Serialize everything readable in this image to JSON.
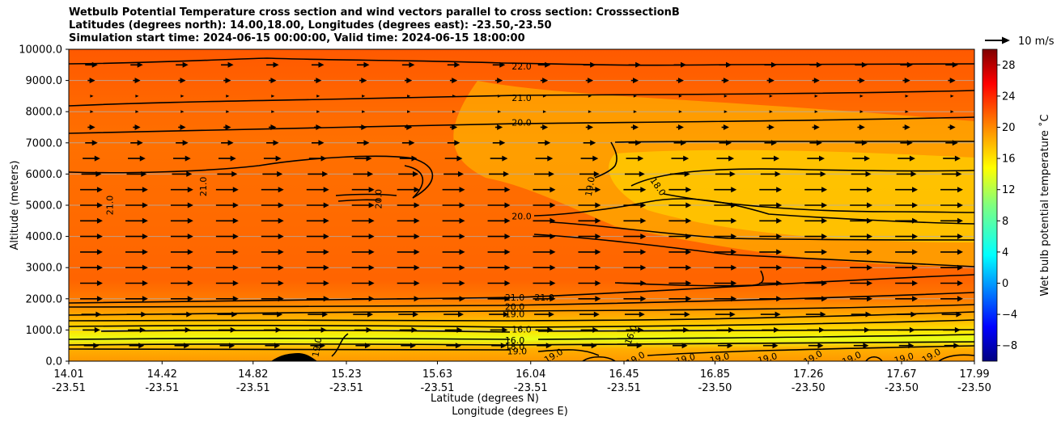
{
  "chart_data": {
    "type": "heatmap",
    "title_lines": [
      "Wetbulb Potential Temperature cross section and wind vectors parallel to cross section: CrosssectionB",
      "Latitudes (degrees north): 14.00,18.00, Longitudes (degrees east): -23.50,-23.50",
      "Simulation start time: 2024-06-15 00:00:00, Valid time: 2024-06-15 18:00:00"
    ],
    "xlabel_lines": [
      "Latitude (degrees N)",
      "Longitude (degrees E)"
    ],
    "ylabel": "Altitude (meters)",
    "x_range": [
      14.01,
      17.99
    ],
    "y_range": [
      0,
      10000
    ],
    "x_ticks": [
      {
        "lat": "14.01",
        "lon": "-23.51"
      },
      {
        "lat": "14.42",
        "lon": "-23.51"
      },
      {
        "lat": "14.82",
        "lon": "-23.51"
      },
      {
        "lat": "15.23",
        "lon": "-23.51"
      },
      {
        "lat": "15.63",
        "lon": "-23.51"
      },
      {
        "lat": "16.04",
        "lon": "-23.51"
      },
      {
        "lat": "16.45",
        "lon": "-23.51"
      },
      {
        "lat": "16.85",
        "lon": "-23.50"
      },
      {
        "lat": "17.26",
        "lon": "-23.50"
      },
      {
        "lat": "17.67",
        "lon": "-23.50"
      },
      {
        "lat": "17.99",
        "lon": "-23.50"
      }
    ],
    "y_ticks": [
      "0.0",
      "1000.0",
      "2000.0",
      "3000.0",
      "4000.0",
      "5000.0",
      "6000.0",
      "7000.0",
      "8000.0",
      "9000.0",
      "10000.0"
    ],
    "grid": "horizontal",
    "colorbar": {
      "label": "Wet bulb potential temperature $^\\circ$C",
      "label_display": "Wet bulb potential temperature ˚C",
      "min": -10,
      "max": 30,
      "ticks": [
        "−8",
        "−4",
        "0",
        "4",
        "8",
        "12",
        "16",
        "20",
        "24",
        "28"
      ],
      "colormap": "jet"
    },
    "quiver_key": {
      "label": "10 m/s",
      "speed": 10
    },
    "contour_labels": [
      {
        "text": "22.0",
        "x": 16.0,
        "y": 9450
      },
      {
        "text": "21.0",
        "x": 16.0,
        "y": 8450
      },
      {
        "text": "20.0",
        "x": 16.0,
        "y": 7650
      },
      {
        "text": "20.0",
        "x": 16.0,
        "y": 4650
      },
      {
        "text": "21.0",
        "x": 14.19,
        "y": 5000,
        "rot": -90
      },
      {
        "text": "21.0",
        "x": 14.6,
        "y": 5600,
        "rot": -90
      },
      {
        "text": "20.0",
        "x": 15.37,
        "y": 5200,
        "rot": -90
      },
      {
        "text": "19.0",
        "x": 16.3,
        "y": 5600,
        "rot": -80
      },
      {
        "text": "18.0",
        "x": 16.6,
        "y": 5600,
        "rot": 55
      },
      {
        "text": "21.0",
        "x": 15.97,
        "y": 2050
      },
      {
        "text": "21.0",
        "x": 16.1,
        "y": 2050
      },
      {
        "text": "20.0",
        "x": 15.97,
        "y": 1750
      },
      {
        "text": "19.0",
        "x": 15.97,
        "y": 1520
      },
      {
        "text": "16.0",
        "x": 16.0,
        "y": 1020
      },
      {
        "text": "16.0",
        "x": 15.97,
        "y": 670
      },
      {
        "text": "18.0",
        "x": 15.97,
        "y": 470
      },
      {
        "text": "19.0",
        "x": 15.98,
        "y": 320
      },
      {
        "text": "19.0",
        "x": 15.1,
        "y": 450,
        "rot": -80
      },
      {
        "text": "16.0",
        "x": 16.48,
        "y": 850,
        "rot": -70
      },
      {
        "text": "19.0",
        "x": 16.14,
        "y": 180,
        "rot": -30
      },
      {
        "text": "19.0",
        "x": 16.5,
        "y": 80,
        "rot": -30
      },
      {
        "text": "19.0",
        "x": 16.72,
        "y": 80,
        "rot": -15
      },
      {
        "text": "19.0",
        "x": 16.87,
        "y": 100,
        "rot": -15
      },
      {
        "text": "19.0",
        "x": 17.08,
        "y": 100,
        "rot": -15
      },
      {
        "text": "19.0",
        "x": 17.28,
        "y": 120,
        "rot": -30
      },
      {
        "text": "19.0",
        "x": 17.45,
        "y": 100,
        "rot": -25
      },
      {
        "text": "19.0",
        "x": 17.68,
        "y": 100,
        "rot": -15
      },
      {
        "text": "19.0",
        "x": 17.8,
        "y": 180,
        "rot": -30
      }
    ],
    "wind_rows": [
      {
        "alt": 9500,
        "speed": 5
      },
      {
        "alt": 9000,
        "speed": 3
      },
      {
        "alt": 8500,
        "speed": 1
      },
      {
        "alt": 8000,
        "speed": 1
      },
      {
        "alt": 7500,
        "speed": 3
      },
      {
        "alt": 7000,
        "speed": 5
      },
      {
        "alt": 6500,
        "speed": 7
      },
      {
        "alt": 6000,
        "speed": 8
      },
      {
        "alt": 5500,
        "speed": 9
      },
      {
        "alt": 5000,
        "speed": 9
      },
      {
        "alt": 4500,
        "speed": 9
      },
      {
        "alt": 4000,
        "speed": 9
      },
      {
        "alt": 3500,
        "speed": 9
      },
      {
        "alt": 3000,
        "speed": 9
      },
      {
        "alt": 2500,
        "speed": 9
      },
      {
        "alt": 2000,
        "speed": 9
      },
      {
        "alt": 1500,
        "speed": 8
      },
      {
        "alt": 1000,
        "speed": 7
      },
      {
        "alt": 500,
        "speed": 6
      }
    ]
  }
}
